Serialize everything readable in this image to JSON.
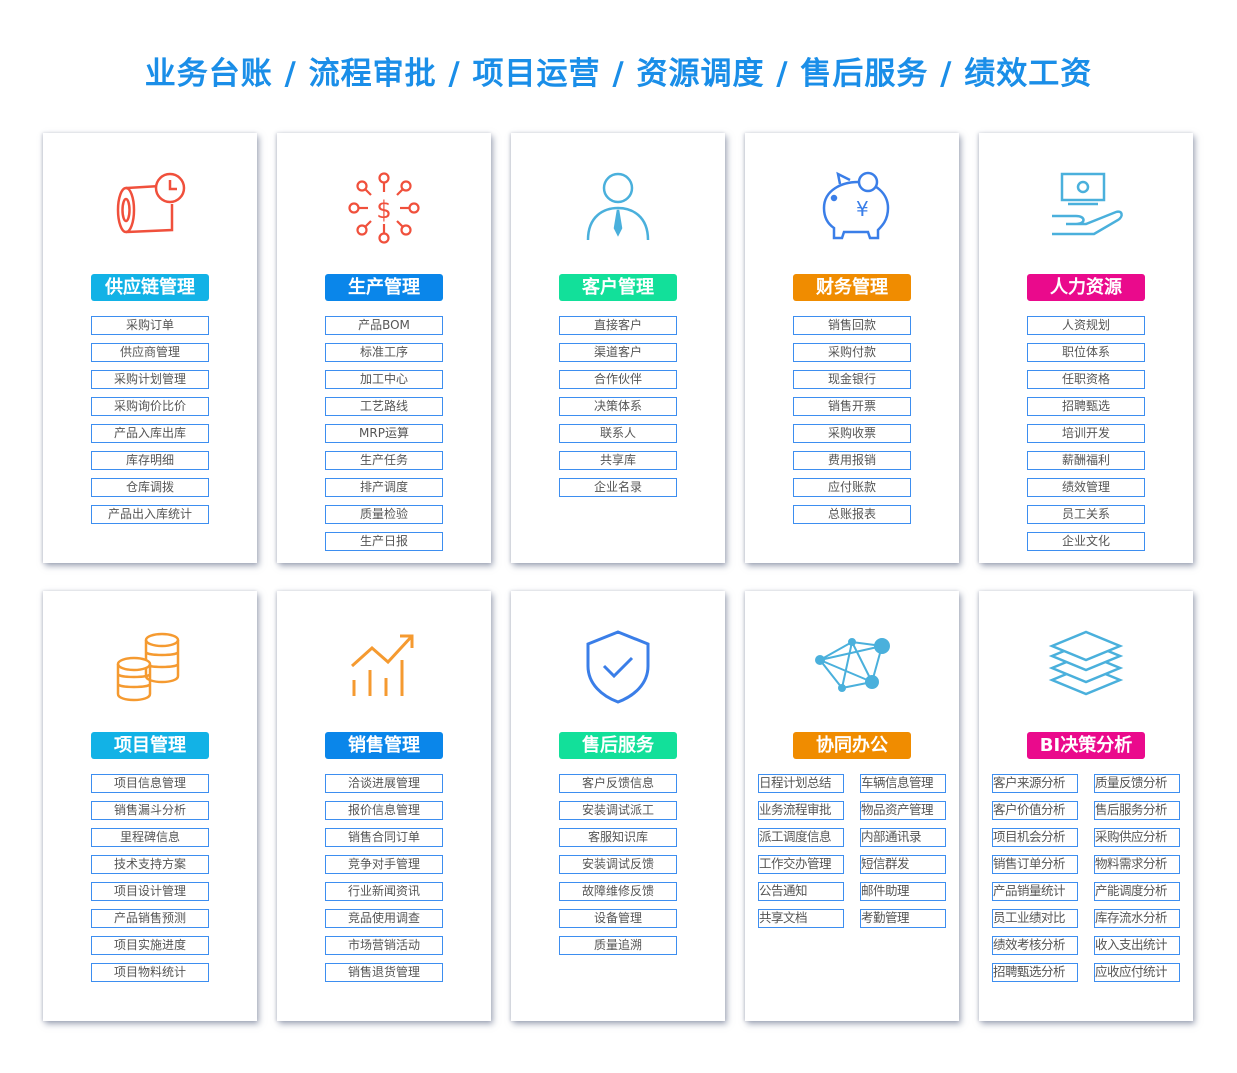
{
  "title": "业务台账 / 流程审批 / 项目运营 / 资源调度 / 售后服务 / 绩效工资",
  "cards": [
    {
      "name": "供应链管理",
      "color": "#12b2e6",
      "icon": "pipe-clock-icon",
      "items": [
        "采购订单",
        "供应商管理",
        "采购计划管理",
        "采购询价比价",
        "产品入库出库",
        "库存明细",
        "仓库调拨",
        "产品出入库统计"
      ]
    },
    {
      "name": "生产管理",
      "color": "#0a86ea",
      "icon": "dollar-network-icon",
      "items": [
        "产品BOM",
        "标准工序",
        "加工中心",
        "工艺路线",
        "MRP运算",
        "生产任务",
        "排产调度",
        "质量检验",
        "生产日报"
      ]
    },
    {
      "name": "客户管理",
      "color": "#12e09a",
      "icon": "person-icon",
      "items": [
        "直接客户",
        "渠道客户",
        "合作伙伴",
        "决策体系",
        "联系人",
        "共享库",
        "企业名录"
      ]
    },
    {
      "name": "财务管理",
      "color": "#f08c00",
      "icon": "piggy-bank-icon",
      "items": [
        "销售回款",
        "采购付款",
        "现金银行",
        "销售开票",
        "采购收票",
        "费用报销",
        "应付账款",
        "总账报表"
      ]
    },
    {
      "name": "人力资源",
      "color": "#ea0a8c",
      "icon": "hand-money-icon",
      "items": [
        "人资规划",
        "职位体系",
        "任职资格",
        "招聘甄选",
        "培训开发",
        "薪酬福利",
        "绩效管理",
        "员工关系",
        "企业文化"
      ]
    },
    {
      "name": "项目管理",
      "color": "#12b2e6",
      "icon": "coins-stack-icon",
      "items": [
        "项目信息管理",
        "销售漏斗分析",
        "里程碑信息",
        "技术支持方案",
        "项目设计管理",
        "产品销售预测",
        "项目实施进度",
        "项目物料统计"
      ]
    },
    {
      "name": "销售管理",
      "color": "#0a86ea",
      "icon": "growth-chart-icon",
      "items": [
        "洽谈进展管理",
        "报价信息管理",
        "销售合同订单",
        "竞争对手管理",
        "行业新闻资讯",
        "竞品使用调查",
        "市场营销活动",
        "销售退货管理"
      ]
    },
    {
      "name": "售后服务",
      "color": "#12e09a",
      "icon": "shield-check-icon",
      "items": [
        "客户反馈信息",
        "安装调试派工",
        "客服知识库",
        "安装调试反馈",
        "故障维修反馈",
        "设备管理",
        "质量追溯"
      ]
    },
    {
      "name": "协同办公",
      "color": "#f08c00",
      "icon": "network-nodes-icon",
      "items": [
        "日程计划总结",
        "车辆信息管理",
        "业务流程审批",
        "物品资产管理",
        "派工调度信息",
        "内部通讯录",
        "工作交办管理",
        "短信群发",
        "公告通知",
        "邮件助理",
        "共享文档",
        "考勤管理"
      ]
    },
    {
      "name": "BI决策分析",
      "color": "#ea0a8c",
      "icon": "layers-icon",
      "items": [
        "客户来源分析",
        "质量反馈分析",
        "客户价值分析",
        "售后服务分析",
        "项目机会分析",
        "采购供应分析",
        "销售订单分析",
        "物料需求分析",
        "产品销量统计",
        "产能调度分析",
        "员工业绩对比",
        "库存流水分析",
        "绩效考核分析",
        "收入支出统计",
        "招聘甄选分析",
        "应收应付统计"
      ]
    }
  ]
}
